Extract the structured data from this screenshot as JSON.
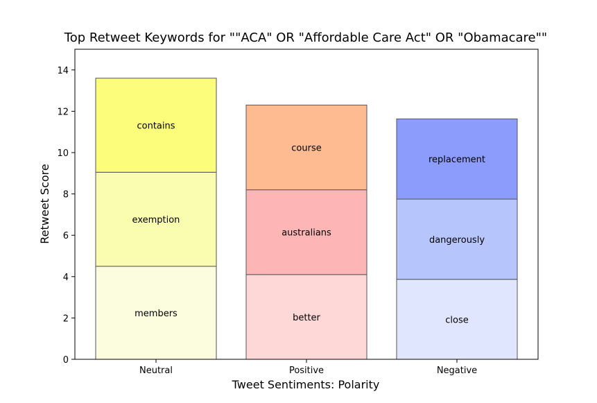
{
  "chart_data": {
    "type": "bar",
    "stacked": true,
    "title": "Top Retweet Keywords for \"\"ACA\" OR \"Affordable Care Act\" OR \"Obamacare\"\"",
    "xlabel": "Tweet Sentiments: Polarity",
    "ylabel": "Retweet Score",
    "ylim": [
      0,
      15
    ],
    "yticks": [
      0,
      2,
      4,
      6,
      8,
      10,
      12,
      14
    ],
    "categories": [
      "Neutral",
      "Positive",
      "Negative"
    ],
    "segments": [
      [
        {
          "keyword": "members",
          "value": 4.5,
          "color": "#fcfcdf"
        },
        {
          "keyword": "exemption",
          "value": 4.55,
          "color": "#fafcb0"
        },
        {
          "keyword": "contains",
          "value": 4.55,
          "color": "#fdfd7c"
        }
      ],
      [
        {
          "keyword": "better",
          "value": 4.1,
          "color": "#fed7d7"
        },
        {
          "keyword": "australians",
          "value": 4.1,
          "color": "#fdb5b5"
        },
        {
          "keyword": "course",
          "value": 4.1,
          "color": "#febb91"
        }
      ],
      [
        {
          "keyword": "close",
          "value": 3.87,
          "color": "#dfe6fd"
        },
        {
          "keyword": "dangerously",
          "value": 3.88,
          "color": "#b7c5fd"
        },
        {
          "keyword": "replacement",
          "value": 3.88,
          "color": "#8c9cfd"
        }
      ]
    ],
    "grid": false,
    "legend": "none"
  }
}
